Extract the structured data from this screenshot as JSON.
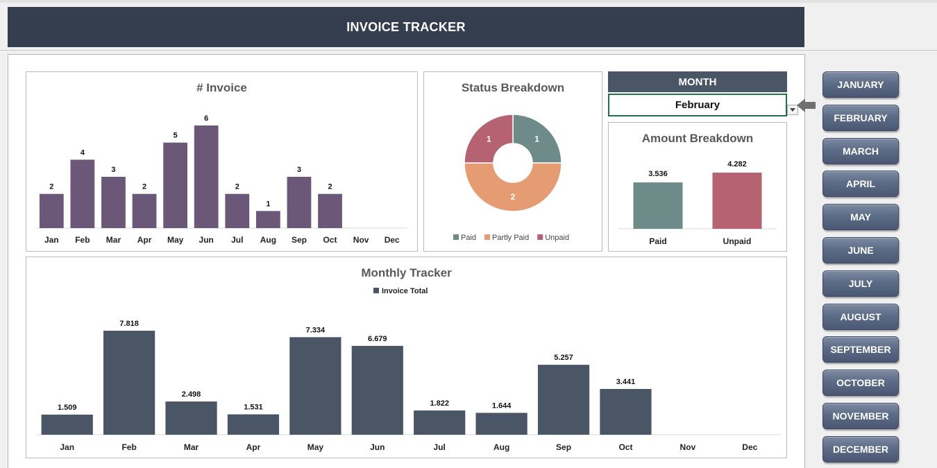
{
  "header": {
    "title": "INVOICE TRACKER"
  },
  "selector": {
    "header": "MONTH",
    "selected": "February"
  },
  "colors": {
    "header_bg": "#343e4f",
    "invoice_bar": "#6b5878",
    "paid": "#6e8a89",
    "partly_paid": "#e69c73",
    "unpaid": "#b56272",
    "tracker_bar": "#4a5566"
  },
  "month_buttons": [
    "JANUARY",
    "FEBRUARY",
    "MARCH",
    "APRIL",
    "MAY",
    "JUNE",
    "JULY",
    "AUGUST",
    "SEPTEMBER",
    "OCTOBER",
    "NOVEMBER",
    "DECEMBER"
  ],
  "chart_data": [
    {
      "type": "bar",
      "title": "# Invoice",
      "categories": [
        "Jan",
        "Feb",
        "Mar",
        "Apr",
        "May",
        "Jun",
        "Jul",
        "Aug",
        "Sep",
        "Oct",
        "Nov",
        "Dec"
      ],
      "values": [
        2,
        4,
        3,
        2,
        5,
        6,
        2,
        1,
        3,
        2,
        null,
        null
      ],
      "labels": [
        "2",
        "4",
        "3",
        "2",
        "5",
        "6",
        "2",
        "1",
        "3",
        "2",
        "",
        ""
      ],
      "ylim": [
        0,
        6
      ],
      "grid": false
    },
    {
      "type": "pie",
      "title": "Status Breakdown",
      "categories": [
        "Paid",
        "Partly Paid",
        "Unpaid"
      ],
      "values": [
        1,
        2,
        1
      ],
      "labels": [
        "1",
        "2",
        "1"
      ],
      "legend": "bottom"
    },
    {
      "type": "bar",
      "title": "Amount Breakdown",
      "categories": [
        "Paid",
        "Unpaid"
      ],
      "values": [
        3.536,
        4.282
      ],
      "labels": [
        "3.536",
        "4.282"
      ],
      "ylim": [
        0,
        4.5
      ]
    },
    {
      "type": "bar",
      "title": "Monthly Tracker",
      "categories": [
        "Jan",
        "Feb",
        "Mar",
        "Apr",
        "May",
        "Jun",
        "Jul",
        "Aug",
        "Sep",
        "Oct",
        "Nov",
        "Dec"
      ],
      "series": [
        {
          "name": "Invoice Total",
          "values": [
            1.509,
            7.818,
            2.498,
            1.531,
            7.334,
            6.679,
            1.822,
            1.644,
            5.257,
            3.441,
            null,
            null
          ]
        }
      ],
      "labels": [
        "1.509",
        "7.818",
        "2.498",
        "1.531",
        "7.334",
        "6.679",
        "1.822",
        "1.644",
        "5.257",
        "3.441",
        "",
        ""
      ],
      "ylim": [
        0,
        7.818
      ],
      "legend": "top"
    }
  ]
}
